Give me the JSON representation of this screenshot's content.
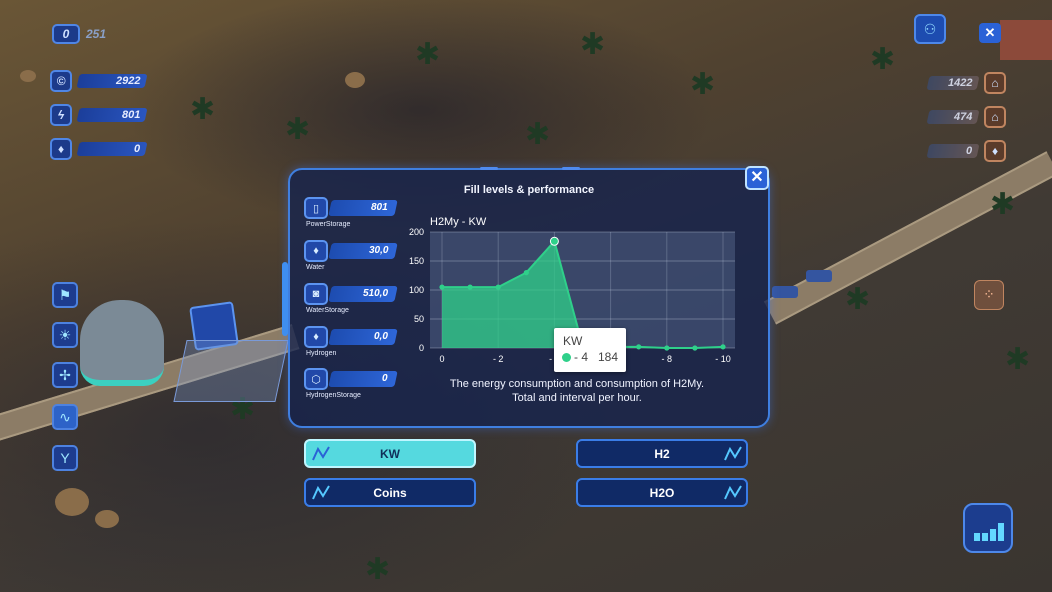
{
  "hud": {
    "top_counter": "0",
    "top_value": "251",
    "resources_left": [
      {
        "icon": "coin-icon",
        "value": "2922"
      },
      {
        "icon": "lightning-icon",
        "value": "801"
      },
      {
        "icon": "water-drop-icon",
        "value": "0"
      }
    ],
    "resources_right": [
      {
        "icon": "house-coin-icon",
        "value": "1422"
      },
      {
        "icon": "house-icon",
        "value": "474"
      },
      {
        "icon": "fire-drop-icon",
        "value": "0"
      }
    ]
  },
  "panel": {
    "title": "Fill levels & performance",
    "gauges": [
      {
        "label": "PowerStorage",
        "value": "801",
        "icon": "battery-icon"
      },
      {
        "label": "Water",
        "value": "30,0",
        "icon": "water-drop-icon"
      },
      {
        "label": "WaterStorage",
        "value": "510,0",
        "icon": "tank-icon"
      },
      {
        "label": "Hydrogen",
        "value": "0,0",
        "icon": "hydrogen-drop-icon"
      },
      {
        "label": "HydrogenStorage",
        "value": "0",
        "icon": "hydrogen-storage-icon"
      }
    ],
    "chart_title": "H2My - KW",
    "caption_line1": "The energy consumption and consumption of H2My.",
    "caption_line2": "Total and interval per hour.",
    "tooltip": {
      "series": "KW",
      "x": "- 4",
      "value": "184"
    }
  },
  "chart_data": {
    "type": "area",
    "title": "H2My - KW",
    "x": [
      0,
      -1,
      -2,
      -3,
      -4,
      -5,
      -6,
      -7,
      -8,
      -9,
      -10
    ],
    "x_tick_labels": [
      "0",
      "- 2",
      "- 4",
      "- 6",
      "- 8",
      "- 10"
    ],
    "y_tick_labels": [
      "0",
      "50",
      "100",
      "150",
      "200"
    ],
    "series": [
      {
        "name": "KW",
        "values": [
          105,
          105,
          105,
          130,
          184,
          5,
          2,
          2,
          0,
          0,
          2
        ]
      }
    ],
    "ylim": [
      0,
      200
    ],
    "grid": true,
    "color": "#2fd08a"
  },
  "buttons": {
    "kw": "KW",
    "h2": "H2",
    "coins": "Coins",
    "h2o": "H2O"
  },
  "colors": {
    "accent": "#3f7fe0",
    "active_button": "#55d9df",
    "series": "#2fd08a"
  }
}
